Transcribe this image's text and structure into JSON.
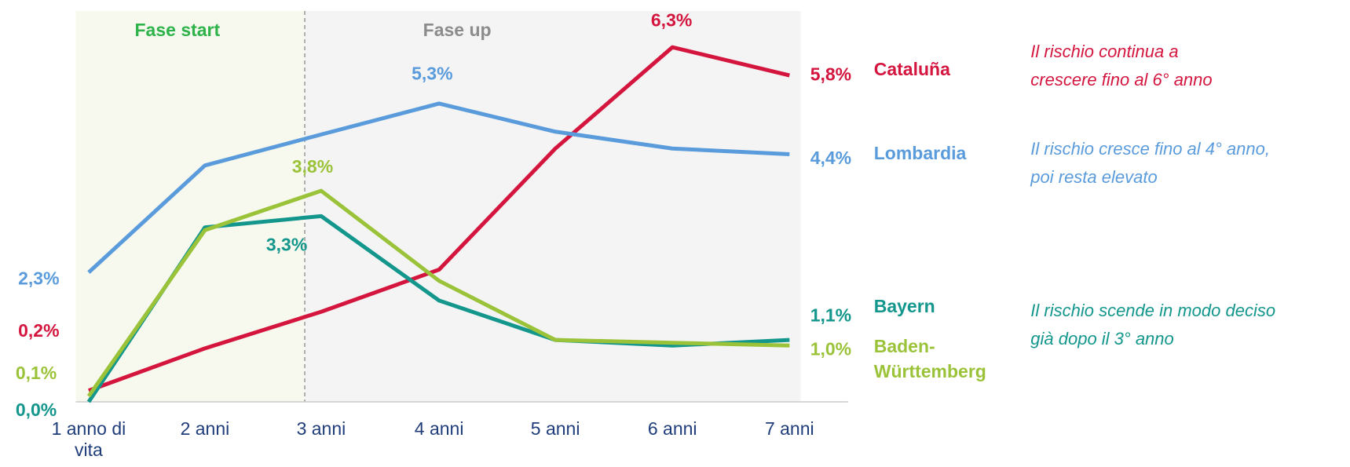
{
  "chart_data": {
    "type": "line",
    "categories": [
      "1 anno di vita",
      "2 anni",
      "3 anni",
      "4 anni",
      "5 anni",
      "6 anni",
      "7 anni"
    ],
    "ylim": [
      0,
      7
    ],
    "phases": [
      {
        "label": "Fase start",
        "color": "#2db34a"
      },
      {
        "label": "Fase up",
        "color": "#8c8c8c"
      }
    ],
    "series": [
      {
        "name": "Cataluña",
        "color": "#d4163f",
        "values": [
          0.2,
          0.95,
          1.6,
          2.35,
          4.5,
          6.3,
          5.8
        ],
        "value_labels": [
          "0,2%",
          null,
          null,
          null,
          null,
          "6,3%",
          "5,8%"
        ],
        "note": [
          "Il rischio continua a",
          "crescere fino al 6° anno"
        ]
      },
      {
        "name": "Lombardia",
        "color": "#5a9bdc",
        "values": [
          2.3,
          4.2,
          4.75,
          5.3,
          4.8,
          4.5,
          4.4
        ],
        "value_labels": [
          "2,3%",
          null,
          null,
          "5,3%",
          null,
          null,
          "4,4%"
        ],
        "note": [
          "Il rischio cresce fino al 4° anno,",
          "poi resta elevato"
        ]
      },
      {
        "name": "Bayern",
        "color": "#13968c",
        "values": [
          0.0,
          3.1,
          3.3,
          1.8,
          1.1,
          1.0,
          1.1
        ],
        "value_labels": [
          "0,0%",
          null,
          "3,3%",
          null,
          null,
          null,
          "1,1%"
        ],
        "note": [
          "Il rischio scende in modo deciso",
          "già dopo il 3° anno"
        ]
      },
      {
        "name": "Baden-Württemberg",
        "color": "#9bc33a",
        "values": [
          0.1,
          3.05,
          3.75,
          2.15,
          1.1,
          1.05,
          1.0
        ],
        "value_labels": [
          "0,1%",
          null,
          "3,8%",
          null,
          null,
          null,
          "1,0%"
        ]
      }
    ]
  }
}
